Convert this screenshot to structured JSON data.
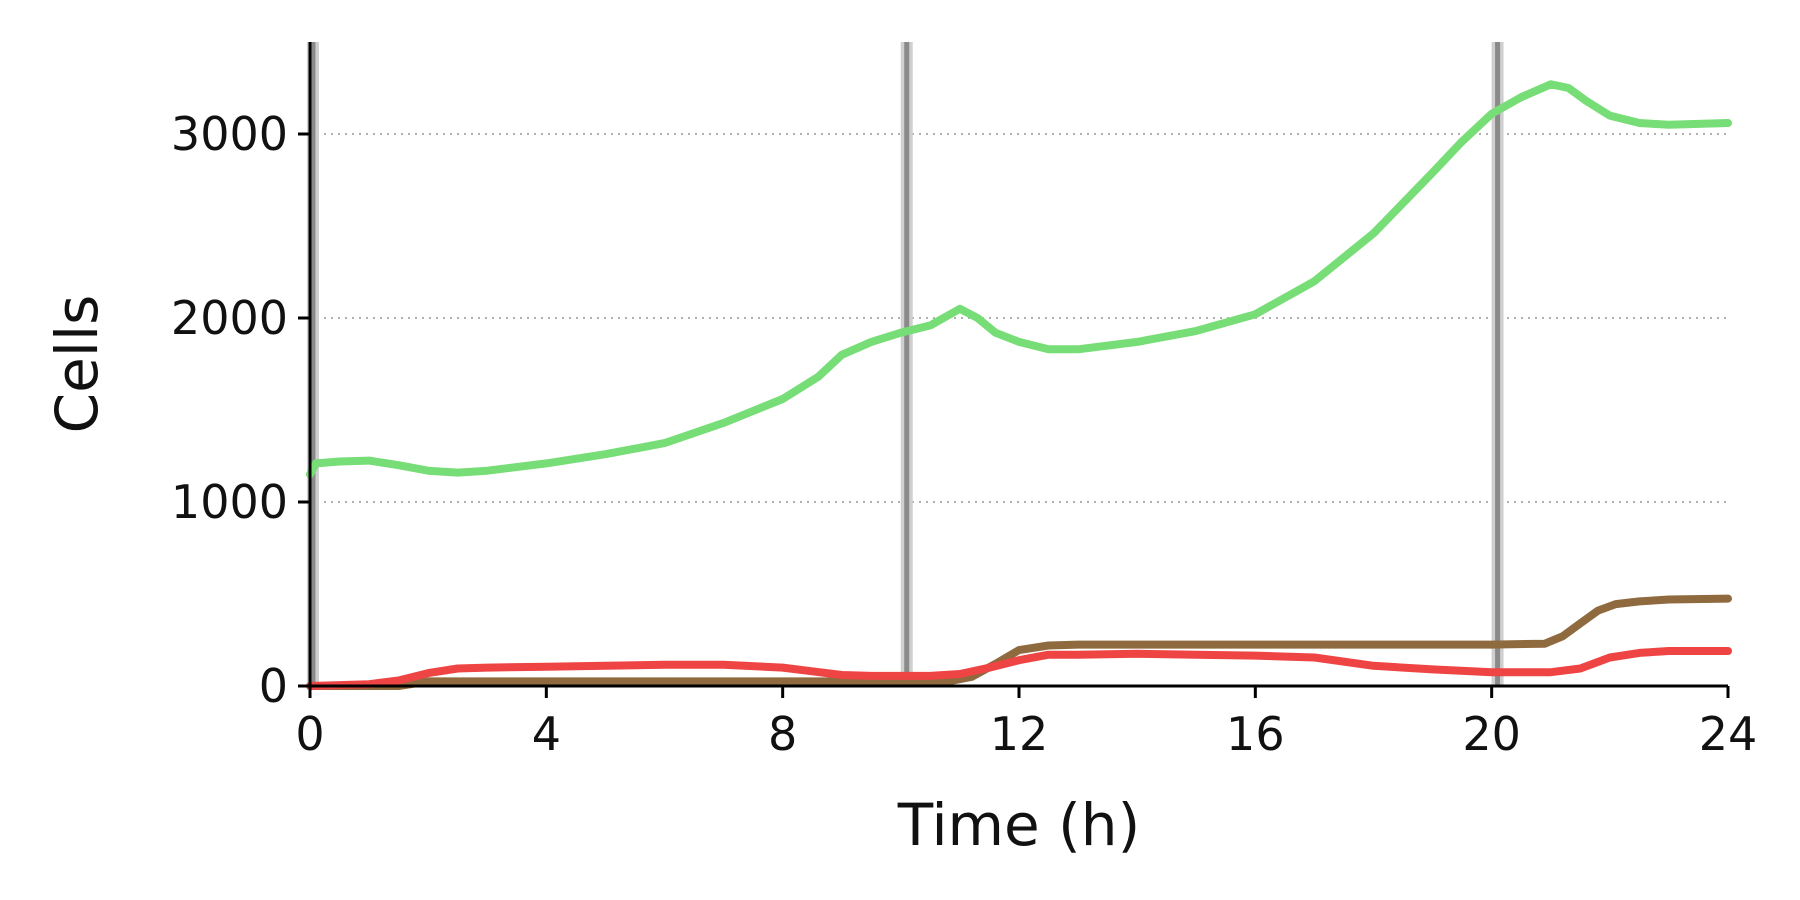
{
  "chart_data": {
    "type": "line",
    "xlabel": "Time (h)",
    "ylabel": "Cells",
    "xlim": [
      0,
      24
    ],
    "ylim": [
      0,
      3500
    ],
    "x_ticks": [
      0,
      4,
      8,
      12,
      16,
      20,
      24
    ],
    "x_tick_labels": [
      "0",
      "4",
      "8",
      "12",
      "16",
      "20",
      "24"
    ],
    "y_ticks": [
      0,
      1000,
      2000,
      3000
    ],
    "y_tick_labels": [
      "0",
      "1000",
      "2000",
      "3000"
    ],
    "grid": "y-dotted",
    "legend": "none",
    "vertical_markers": [
      0.05,
      10.1,
      20.1
    ],
    "colors": {
      "marker": "#8a8a8a",
      "marker_halo": "#cfcfcf",
      "grid": "#b0b0b0",
      "axis": "#000000"
    },
    "series": [
      {
        "color": "#77dd77",
        "x": [
          0,
          0.1,
          0.5,
          1.0,
          1.5,
          2.0,
          2.5,
          3.0,
          4.0,
          5.0,
          6.0,
          7.0,
          8.0,
          8.6,
          9.0,
          9.5,
          10.0,
          10.5,
          11.0,
          11.3,
          11.6,
          12.0,
          12.5,
          13.0,
          14.0,
          15.0,
          16.0,
          17.0,
          18.0,
          19.0,
          19.5,
          20.0,
          20.5,
          21.0,
          21.3,
          21.6,
          22.0,
          22.5,
          23.0,
          24.0
        ],
        "values": [
          1150,
          1210,
          1220,
          1225,
          1200,
          1170,
          1160,
          1170,
          1210,
          1260,
          1320,
          1430,
          1560,
          1680,
          1800,
          1870,
          1920,
          1960,
          2050,
          2000,
          1920,
          1870,
          1830,
          1830,
          1870,
          1930,
          2020,
          2200,
          2460,
          2790,
          2960,
          3110,
          3200,
          3270,
          3250,
          3180,
          3100,
          3060,
          3050,
          3060
        ]
      },
      {
        "color": "#8f6a3f",
        "x": [
          0,
          1.5,
          2.0,
          10.0,
          10.8,
          11.2,
          11.6,
          12.0,
          12.5,
          13.0,
          16.0,
          20.0,
          20.9,
          21.2,
          21.5,
          21.8,
          22.1,
          22.5,
          23.0,
          24.0
        ],
        "values": [
          0,
          0,
          25,
          25,
          25,
          50,
          120,
          195,
          220,
          225,
          225,
          225,
          230,
          270,
          340,
          410,
          445,
          460,
          470,
          475
        ]
      },
      {
        "color": "#ee4444",
        "x": [
          0,
          1.0,
          1.5,
          2.0,
          2.5,
          3.0,
          4.0,
          5.0,
          6.0,
          7.0,
          8.0,
          8.5,
          9.0,
          9.5,
          10.0,
          10.5,
          11.0,
          11.5,
          12.0,
          12.5,
          13.0,
          14.0,
          15.0,
          16.0,
          17.0,
          18.0,
          19.0,
          20.0,
          20.5,
          21.0,
          21.5,
          22.0,
          22.5,
          23.0,
          24.0
        ],
        "values": [
          0,
          10,
          30,
          70,
          95,
          100,
          105,
          110,
          115,
          115,
          100,
          80,
          60,
          55,
          55,
          55,
          65,
          100,
          140,
          170,
          170,
          175,
          170,
          165,
          155,
          110,
          90,
          75,
          75,
          75,
          95,
          155,
          180,
          190,
          190
        ]
      }
    ]
  }
}
